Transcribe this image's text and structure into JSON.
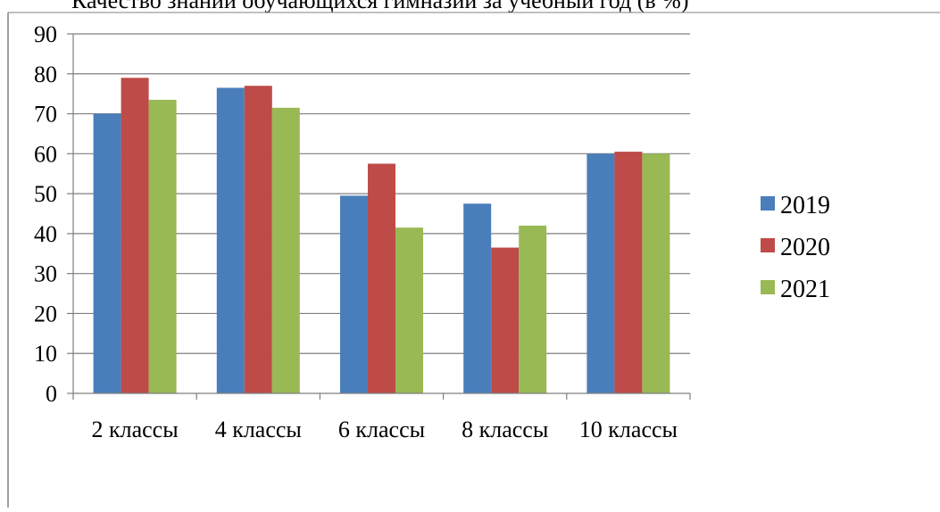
{
  "chart_data": {
    "type": "bar",
    "title": "Качество знаний обучающихся гимназии за учебный год (в %)",
    "categories": [
      "2 классы",
      "4 классы",
      "6 классы",
      "8 классы",
      "10 классы"
    ],
    "series": [
      {
        "name": "2019",
        "values": [
          70,
          76.5,
          49.5,
          47.5,
          60
        ],
        "color": "#4a7ebb"
      },
      {
        "name": "2020",
        "values": [
          79,
          77,
          57.5,
          36.5,
          60.5
        ],
        "color": "#be4b48"
      },
      {
        "name": "2021",
        "values": [
          73.5,
          71.5,
          41.5,
          42,
          60
        ],
        "color": "#98b954"
      }
    ],
    "yticks": [
      "0",
      "10",
      "20",
      "30",
      "40",
      "50",
      "60",
      "70",
      "80",
      "90"
    ],
    "ylim": [
      0,
      90
    ],
    "grid": true,
    "legend_position": "right"
  }
}
